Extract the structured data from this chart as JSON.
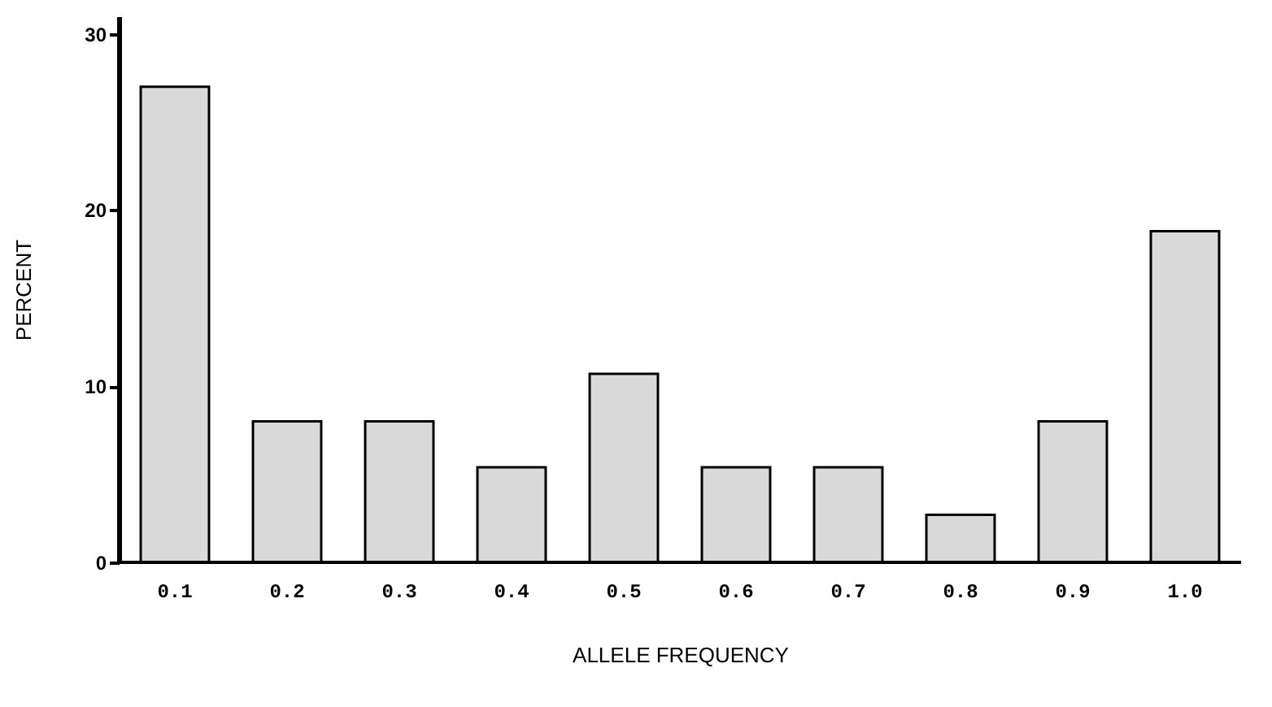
{
  "chart_data": {
    "type": "bar",
    "xlabel": "ALLELE FREQUENCY",
    "ylabel": "PERCENT",
    "categories": [
      "0.1",
      "0.2",
      "0.3",
      "0.4",
      "0.5",
      "0.6",
      "0.7",
      "0.8",
      "0.9",
      "1.0"
    ],
    "values": [
      27,
      8,
      8,
      5.4,
      10.7,
      5.4,
      5.4,
      2.7,
      8,
      18.8
    ],
    "color": "#d9d9d9",
    "ylim": [
      0,
      31
    ],
    "yticks": [
      0,
      10,
      20,
      30
    ],
    "grid": false
  }
}
